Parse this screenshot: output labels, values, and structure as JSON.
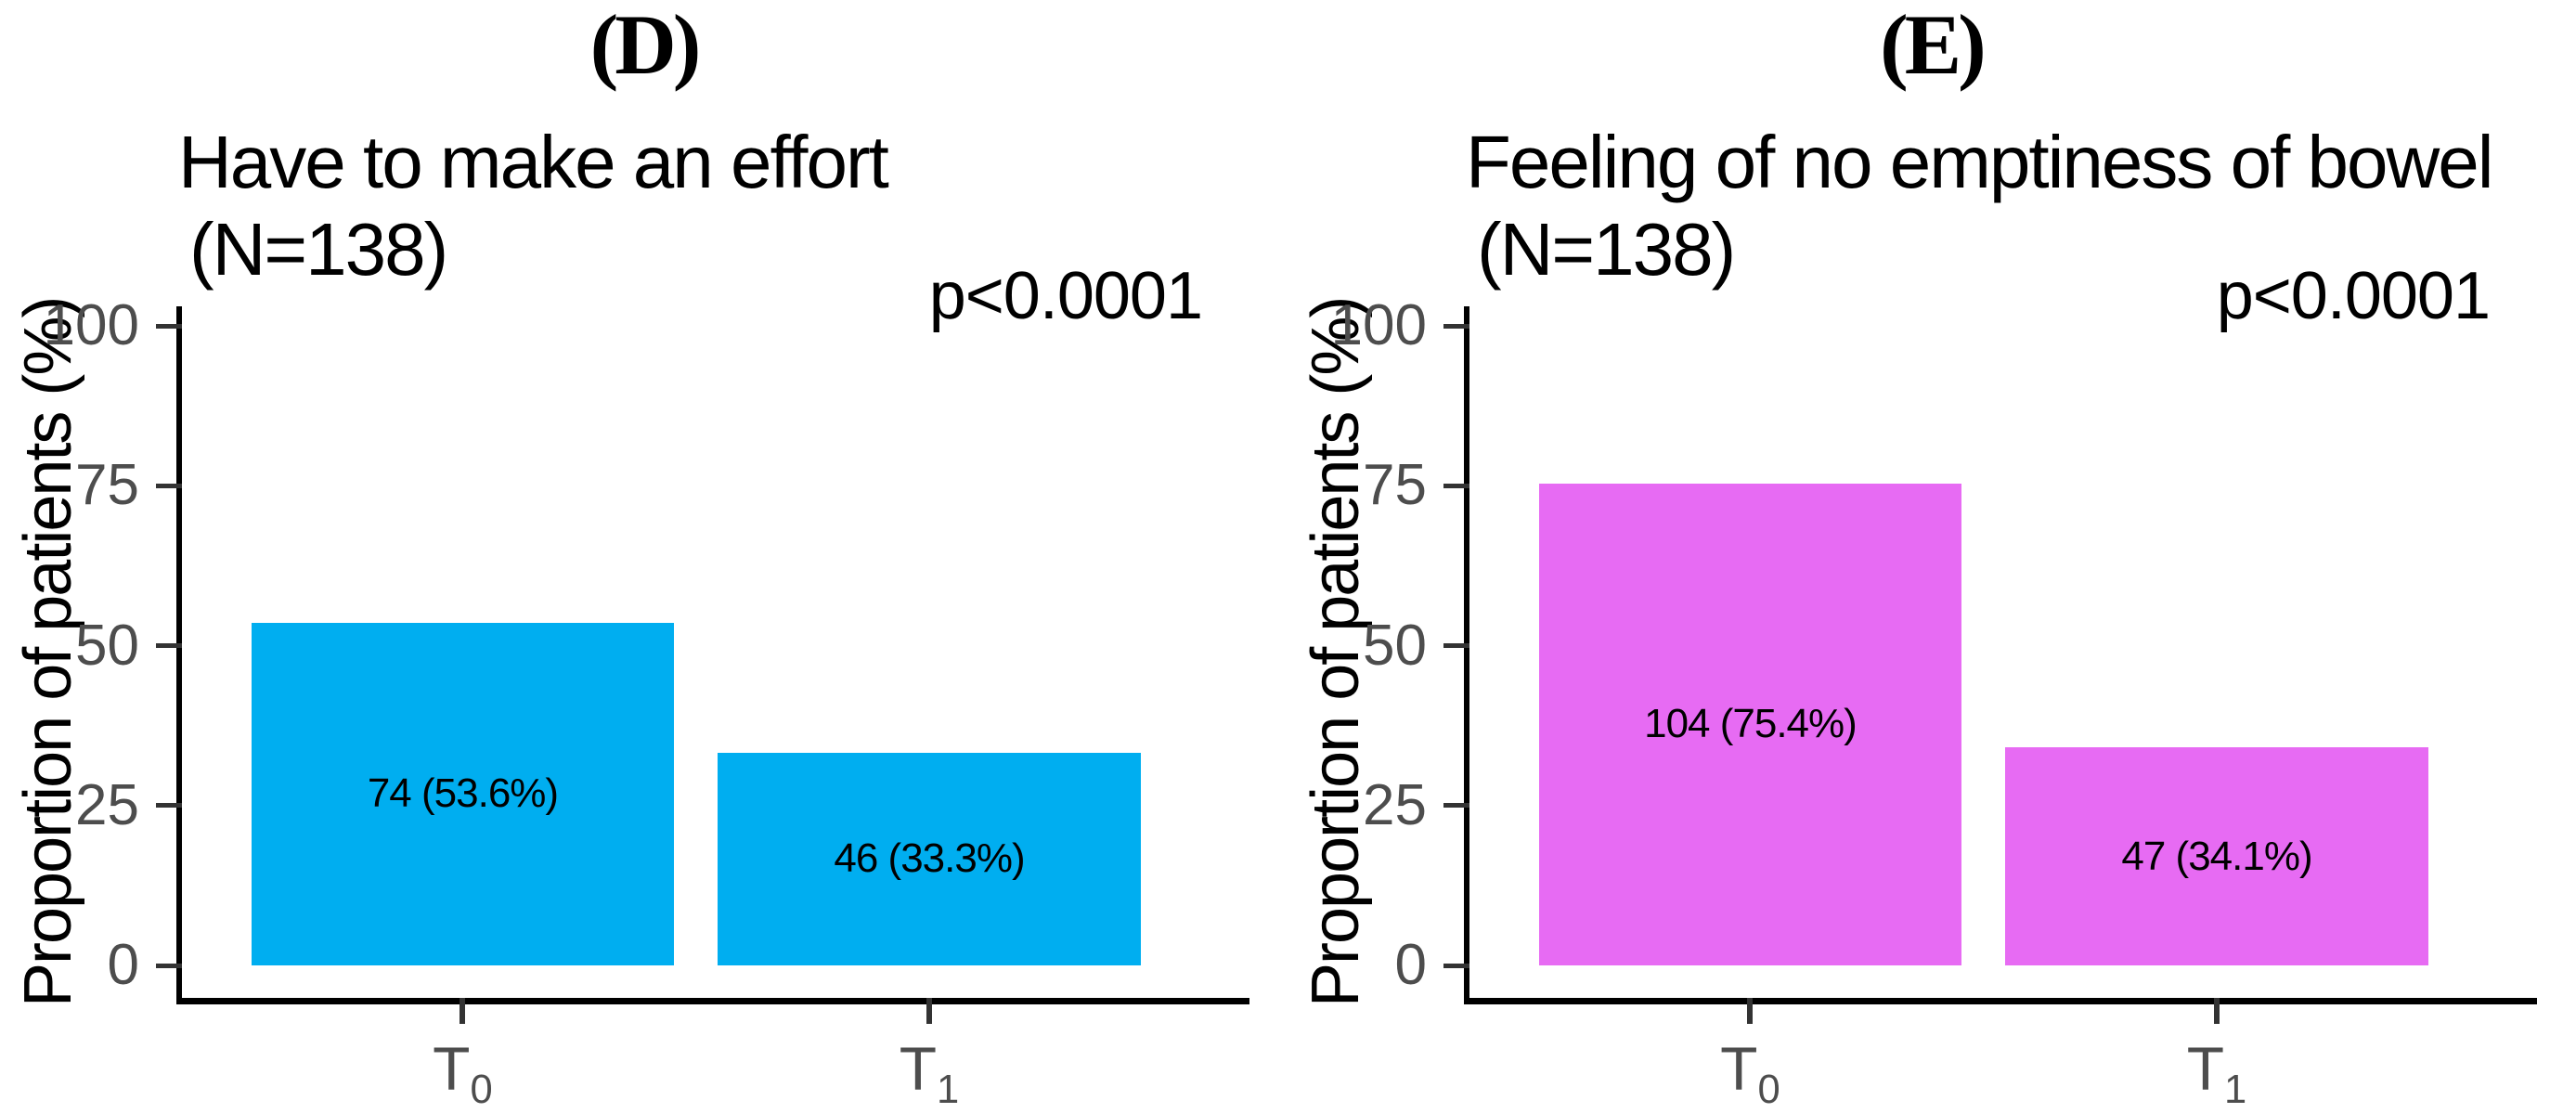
{
  "chart_data": [
    {
      "type": "bar",
      "panel_letter": "(D)",
      "title": "Have to make an effort",
      "subtitle": "(N=138)",
      "annotation": "p<0.0001",
      "categories": [
        "T0",
        "T1"
      ],
      "values": [
        53.6,
        33.3
      ],
      "counts": [
        74,
        46
      ],
      "bar_labels": [
        "74 (53.6%)",
        "46 (33.3%)"
      ],
      "xlabel": "",
      "ylabel": "Proportion of patients (%)",
      "ylim": [
        0,
        100
      ],
      "y_ticks": [
        0,
        25,
        50,
        75,
        100
      ],
      "bar_color": "#00AEF0",
      "grid": false,
      "legend": false
    },
    {
      "type": "bar",
      "panel_letter": "(E)",
      "title": "Feeling of no emptiness of bowel",
      "subtitle": "(N=138)",
      "annotation": "p<0.0001",
      "categories": [
        "T0",
        "T1"
      ],
      "values": [
        75.4,
        34.1
      ],
      "counts": [
        104,
        47
      ],
      "bar_labels": [
        "104 (75.4%)",
        "47 (34.1%)"
      ],
      "xlabel": "",
      "ylabel": "Proportion of patients (%)",
      "ylim": [
        0,
        100
      ],
      "y_ticks": [
        0,
        25,
        50,
        75,
        100
      ],
      "bar_color": "#E76BF3",
      "grid": false,
      "legend": false
    }
  ],
  "colors": {
    "axis_line": "#000000",
    "tick_mark": "#333333",
    "tick_text": "#4d4d4d",
    "text": "#000000",
    "background": "#ffffff"
  }
}
